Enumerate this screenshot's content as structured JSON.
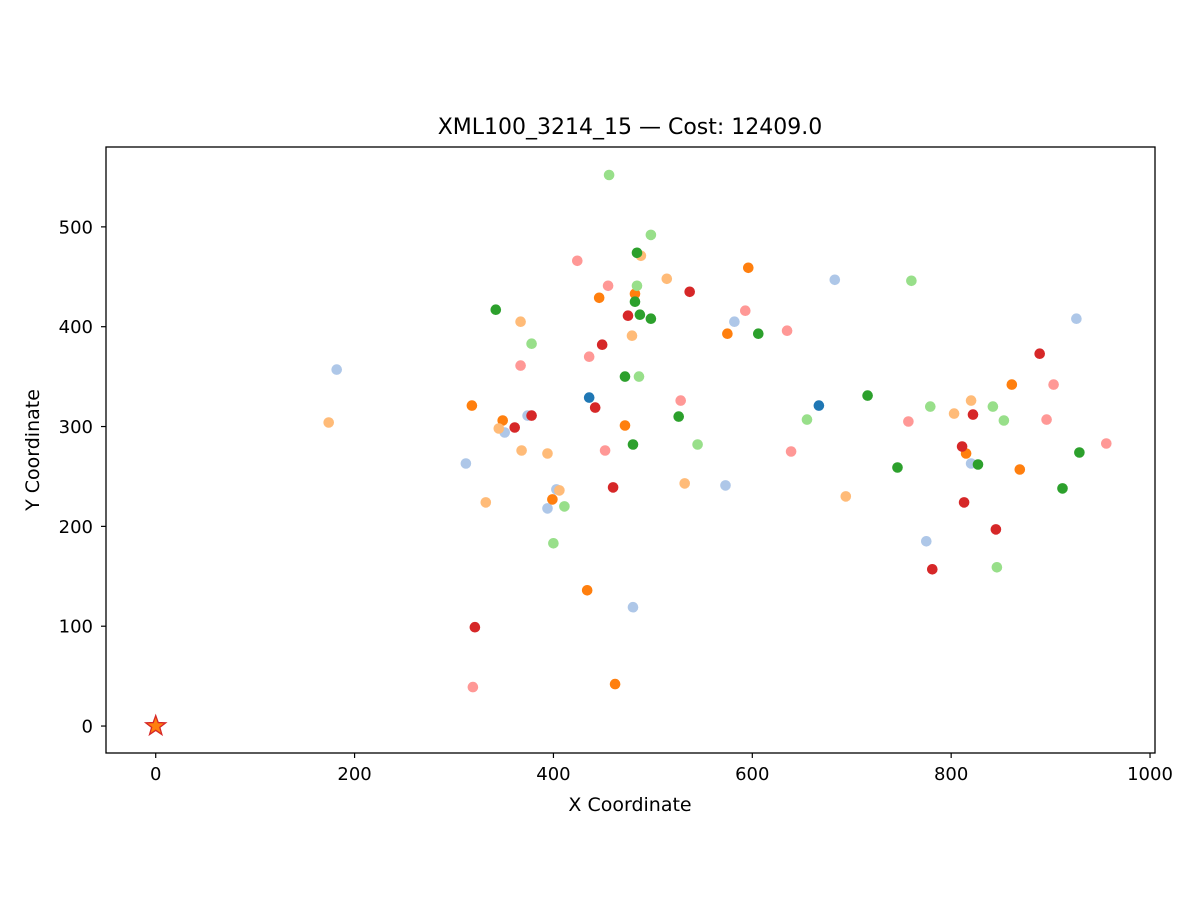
{
  "chart_data": {
    "type": "scatter",
    "title": "XML100_3214_15  —  Cost: 12409.0",
    "xlabel": "X Coordinate",
    "ylabel": "Y Coordinate",
    "xlim": [
      -50,
      1005
    ],
    "ylim": [
      -27,
      580
    ],
    "xticks": [
      0,
      200,
      400,
      600,
      800,
      1000
    ],
    "yticks": [
      0,
      100,
      200,
      300,
      400,
      500
    ],
    "grid": false,
    "depot": {
      "x": 0,
      "y": 0,
      "marker": "star",
      "fill": "#ff7f0e",
      "edge": "#d62728"
    },
    "routes": [
      {
        "color": "#1f77b4",
        "points": [
          [
            436,
            329
          ],
          [
            667,
            321
          ]
        ]
      },
      {
        "color": "#aec7e8",
        "points": [
          [
            182,
            357
          ],
          [
            312,
            263
          ],
          [
            351,
            294
          ],
          [
            374,
            311
          ],
          [
            394,
            218
          ],
          [
            403,
            237
          ],
          [
            480,
            119
          ],
          [
            573,
            241
          ],
          [
            582,
            405
          ],
          [
            683,
            447
          ],
          [
            775,
            185
          ],
          [
            820,
            263
          ],
          [
            926,
            408
          ]
        ]
      },
      {
        "color": "#ff7f0e",
        "points": [
          [
            318,
            321
          ],
          [
            349,
            306
          ],
          [
            399,
            227
          ],
          [
            434,
            136
          ],
          [
            446,
            429
          ],
          [
            462,
            42
          ],
          [
            472,
            301
          ],
          [
            482,
            433
          ],
          [
            575,
            393
          ],
          [
            596,
            459
          ],
          [
            815,
            273
          ],
          [
            861,
            342
          ],
          [
            869,
            257
          ]
        ]
      },
      {
        "color": "#ffbb78",
        "points": [
          [
            174,
            304
          ],
          [
            332,
            224
          ],
          [
            345,
            298
          ],
          [
            367,
            405
          ],
          [
            368,
            276
          ],
          [
            394,
            273
          ],
          [
            406,
            236
          ],
          [
            479,
            391
          ],
          [
            488,
            471
          ],
          [
            514,
            448
          ],
          [
            532,
            243
          ],
          [
            694,
            230
          ],
          [
            803,
            313
          ],
          [
            820,
            326
          ]
        ]
      },
      {
        "color": "#2ca02c",
        "points": [
          [
            342,
            417
          ],
          [
            472,
            350
          ],
          [
            480,
            282
          ],
          [
            482,
            425
          ],
          [
            484,
            474
          ],
          [
            487,
            412
          ],
          [
            498,
            408
          ],
          [
            526,
            310
          ],
          [
            606,
            393
          ],
          [
            716,
            331
          ],
          [
            746,
            259
          ],
          [
            827,
            262
          ],
          [
            912,
            238
          ],
          [
            929,
            274
          ]
        ]
      },
      {
        "color": "#98df8a",
        "points": [
          [
            378,
            383
          ],
          [
            400,
            183
          ],
          [
            411,
            220
          ],
          [
            456,
            552
          ],
          [
            484,
            441
          ],
          [
            486,
            350
          ],
          [
            498,
            492
          ],
          [
            545,
            282
          ],
          [
            655,
            307
          ],
          [
            760,
            446
          ],
          [
            779,
            320
          ],
          [
            842,
            320
          ],
          [
            846,
            159
          ],
          [
            853,
            306
          ]
        ]
      },
      {
        "color": "#d62728",
        "points": [
          [
            321,
            99
          ],
          [
            361,
            299
          ],
          [
            378,
            311
          ],
          [
            442,
            319
          ],
          [
            449,
            382
          ],
          [
            460,
            239
          ],
          [
            475,
            411
          ],
          [
            537,
            435
          ],
          [
            781,
            157
          ],
          [
            811,
            280
          ],
          [
            813,
            224
          ],
          [
            822,
            312
          ],
          [
            845,
            197
          ],
          [
            889,
            373
          ]
        ]
      },
      {
        "color": "#ff9896",
        "points": [
          [
            319,
            39
          ],
          [
            367,
            361
          ],
          [
            424,
            466
          ],
          [
            436,
            370
          ],
          [
            452,
            276
          ],
          [
            455,
            441
          ],
          [
            528,
            326
          ],
          [
            593,
            416
          ],
          [
            635,
            396
          ],
          [
            639,
            275
          ],
          [
            757,
            305
          ],
          [
            896,
            307
          ],
          [
            903,
            342
          ],
          [
            956,
            283
          ]
        ]
      }
    ]
  }
}
